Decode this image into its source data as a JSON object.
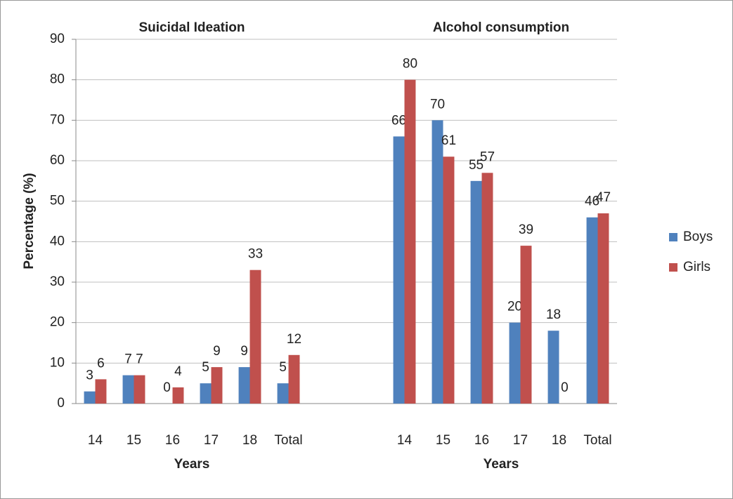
{
  "chart_data": {
    "type": "bar",
    "ylabel": "Percentage (%)",
    "groups": [
      {
        "title": "Suicidal Ideation",
        "xlabel": "Years"
      },
      {
        "title": "Alcohol consumption",
        "xlabel": "Years"
      }
    ],
    "categories": [
      "14",
      "15",
      "16",
      "17",
      "18",
      "Total",
      null,
      null,
      "14",
      "15",
      "16",
      "17",
      "18",
      "Total"
    ],
    "series": [
      {
        "name": "Boys",
        "color": "#4f81bd",
        "values": [
          3,
          7,
          0,
          5,
          9,
          5,
          null,
          null,
          66,
          70,
          55,
          20,
          18,
          46
        ]
      },
      {
        "name": "Girls",
        "color": "#c0504d",
        "values": [
          6,
          7,
          4,
          9,
          33,
          12,
          null,
          null,
          80,
          61,
          57,
          39,
          0,
          47
        ]
      }
    ],
    "ylim": [
      0,
      90
    ],
    "yticks": [
      0,
      10,
      20,
      30,
      40,
      50,
      60,
      70,
      80,
      90
    ],
    "grid": true,
    "legend": "right"
  }
}
